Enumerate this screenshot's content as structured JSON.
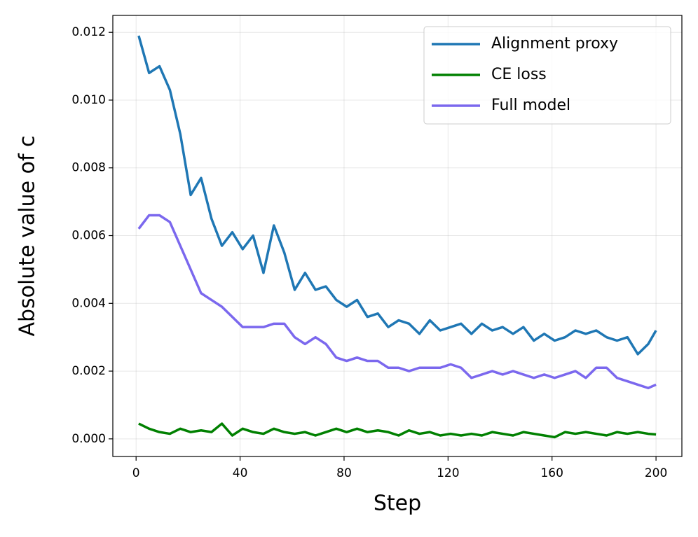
{
  "chart_data": {
    "type": "line",
    "xlabel": "Step",
    "ylabel": "Absolute value of c",
    "x": [
      1,
      5,
      9,
      13,
      17,
      21,
      25,
      29,
      33,
      37,
      41,
      45,
      49,
      53,
      57,
      61,
      65,
      69,
      73,
      77,
      81,
      85,
      89,
      93,
      97,
      101,
      105,
      109,
      113,
      117,
      121,
      125,
      129,
      133,
      137,
      141,
      145,
      149,
      153,
      157,
      161,
      165,
      169,
      173,
      177,
      181,
      185,
      189,
      193,
      197,
      200
    ],
    "series": [
      {
        "name": "Alignment proxy",
        "color": "#1f77b4",
        "values": [
          0.0119,
          0.0108,
          0.011,
          0.0103,
          0.009,
          0.0072,
          0.0077,
          0.0065,
          0.0057,
          0.0061,
          0.0056,
          0.006,
          0.0049,
          0.0063,
          0.0055,
          0.0044,
          0.0049,
          0.0044,
          0.0045,
          0.0041,
          0.0039,
          0.0041,
          0.0036,
          0.0037,
          0.0033,
          0.0035,
          0.0034,
          0.0031,
          0.0035,
          0.0032,
          0.0033,
          0.0034,
          0.0031,
          0.0034,
          0.0032,
          0.0033,
          0.0031,
          0.0033,
          0.0029,
          0.0031,
          0.0029,
          0.003,
          0.0032,
          0.0031,
          0.0032,
          0.003,
          0.0029,
          0.003,
          0.0025,
          0.0028,
          0.0032
        ]
      },
      {
        "name": "CE loss",
        "color": "#008000",
        "values": [
          0.00045,
          0.0003,
          0.0002,
          0.00015,
          0.0003,
          0.0002,
          0.00025,
          0.0002,
          0.00045,
          0.0001,
          0.0003,
          0.0002,
          0.00015,
          0.0003,
          0.0002,
          0.00015,
          0.0002,
          0.0001,
          0.0002,
          0.0003,
          0.0002,
          0.0003,
          0.0002,
          0.00025,
          0.0002,
          0.0001,
          0.00025,
          0.00015,
          0.0002,
          0.0001,
          0.00015,
          0.0001,
          0.00015,
          0.0001,
          0.0002,
          0.00015,
          0.0001,
          0.0002,
          0.00015,
          0.0001,
          5e-05,
          0.0002,
          0.00015,
          0.0002,
          0.00015,
          0.0001,
          0.0002,
          0.00015,
          0.0002,
          0.00015,
          0.00013
        ]
      },
      {
        "name": "Full model",
        "color": "#7b68ee",
        "values": [
          0.0062,
          0.0066,
          0.0066,
          0.0064,
          0.0057,
          0.005,
          0.0043,
          0.0041,
          0.0039,
          0.0036,
          0.0033,
          0.0033,
          0.0033,
          0.0034,
          0.0034,
          0.003,
          0.0028,
          0.003,
          0.0028,
          0.0024,
          0.0023,
          0.0024,
          0.0023,
          0.0023,
          0.0021,
          0.0021,
          0.002,
          0.0021,
          0.0021,
          0.0021,
          0.0022,
          0.0021,
          0.0018,
          0.0019,
          0.002,
          0.0019,
          0.002,
          0.0019,
          0.0018,
          0.0019,
          0.0018,
          0.0019,
          0.002,
          0.0018,
          0.0021,
          0.0021,
          0.0018,
          0.0017,
          0.0016,
          0.0015,
          0.0016
        ]
      }
    ],
    "xlim": [
      -8.95,
      209.95
    ],
    "xticks": [
      0,
      40,
      80,
      120,
      160,
      200
    ],
    "ylim": [
      -0.00052,
      0.0125
    ],
    "yticks": [
      {
        "value": 0,
        "label": "0.000"
      },
      {
        "value": 0.002,
        "label": "0.002"
      },
      {
        "value": 0.004,
        "label": "0.004"
      },
      {
        "value": 0.006,
        "label": "0.006"
      },
      {
        "value": 0.008,
        "label": "0.008"
      },
      {
        "value": 0.01,
        "label": "0.010"
      },
      {
        "value": 0.012,
        "label": "0.012"
      }
    ],
    "grid": true,
    "legend": "upper right"
  }
}
